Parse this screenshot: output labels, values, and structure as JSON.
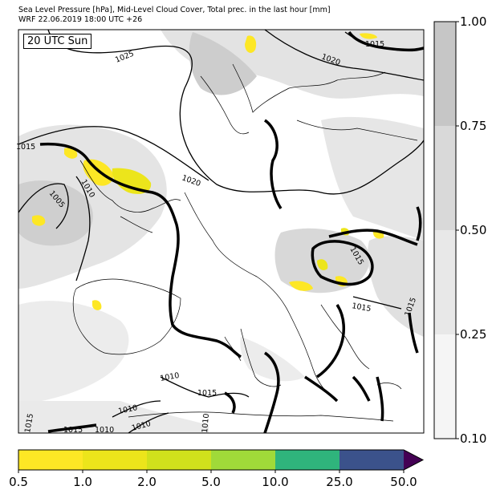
{
  "header": {
    "title_line1": "Sea Level Pressure [hPa], Mid-Level Cloud Cover, Total prec. in the last hour [mm]",
    "title_line2": "WRF 22.06.2019 18:00 UTC +26"
  },
  "map": {
    "time_badge": "20 UTC Sun",
    "isobar_labels": [
      "1025",
      "1020",
      "1015",
      "1015",
      "1010",
      "1005",
      "1020",
      "1015",
      "1015",
      "1015",
      "1010",
      "1010",
      "1010",
      "1015",
      "1010",
      "1015",
      "1015",
      "1010"
    ]
  },
  "cloud_colorbar": {
    "ticks": [
      "1.00",
      "0.75",
      "0.50",
      "0.25",
      "0.10"
    ],
    "colors": [
      "#c6c6c6",
      "#d9d9d9",
      "#e8e8e8",
      "#f5f5f5"
    ]
  },
  "precip_colorbar": {
    "ticks": [
      "0.5",
      "1.0",
      "2.0",
      "5.0",
      "10.0",
      "25.0",
      "50.0"
    ],
    "colors": [
      "#fde725",
      "#ece51b",
      "#d0e11c",
      "#a0da39",
      "#2fb47c",
      "#3b528b",
      "#440154"
    ]
  }
}
